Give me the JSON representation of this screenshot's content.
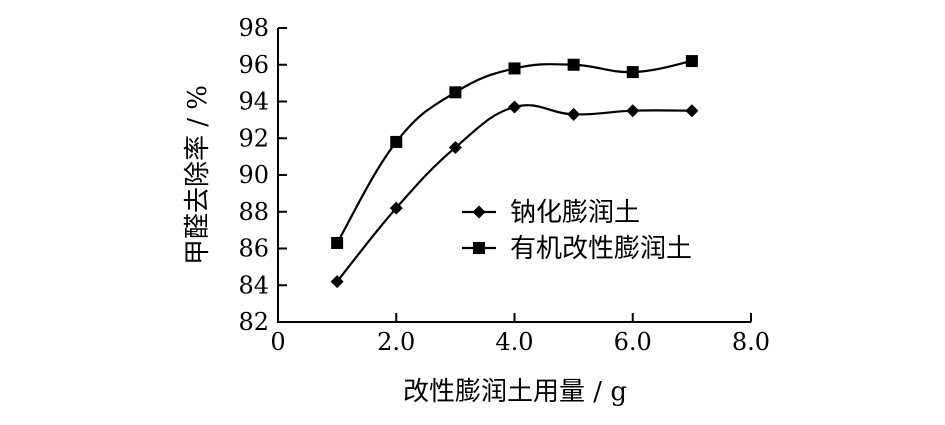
{
  "chart_data": {
    "type": "line",
    "title": "",
    "xlabel": "改性膨润土用量 / g",
    "ylabel": "甲醛去除率 / %",
    "xlim": [
      0,
      8.0
    ],
    "ylim": [
      82,
      98
    ],
    "x_ticks": [
      0,
      2.0,
      4.0,
      6.0,
      8.0
    ],
    "x_tick_labels": [
      "0",
      "2.0",
      "4.0",
      "6.0",
      "8.0"
    ],
    "y_ticks": [
      82,
      84,
      86,
      88,
      90,
      92,
      94,
      96,
      98
    ],
    "y_tick_labels": [
      "82",
      "84",
      "86",
      "88",
      "90",
      "92",
      "94",
      "96",
      "98"
    ],
    "grid": false,
    "legend_position": "center-right",
    "x": [
      1,
      2,
      3,
      4,
      5,
      6,
      7
    ],
    "series": [
      {
        "name": "钠化膨润土",
        "marker": "diamond",
        "values": [
          84.2,
          88.2,
          91.5,
          93.7,
          93.3,
          93.5,
          93.5
        ]
      },
      {
        "name": "有机改性膨润土",
        "marker": "square",
        "values": [
          86.3,
          91.8,
          94.5,
          95.8,
          96.0,
          95.6,
          96.2
        ]
      }
    ]
  }
}
